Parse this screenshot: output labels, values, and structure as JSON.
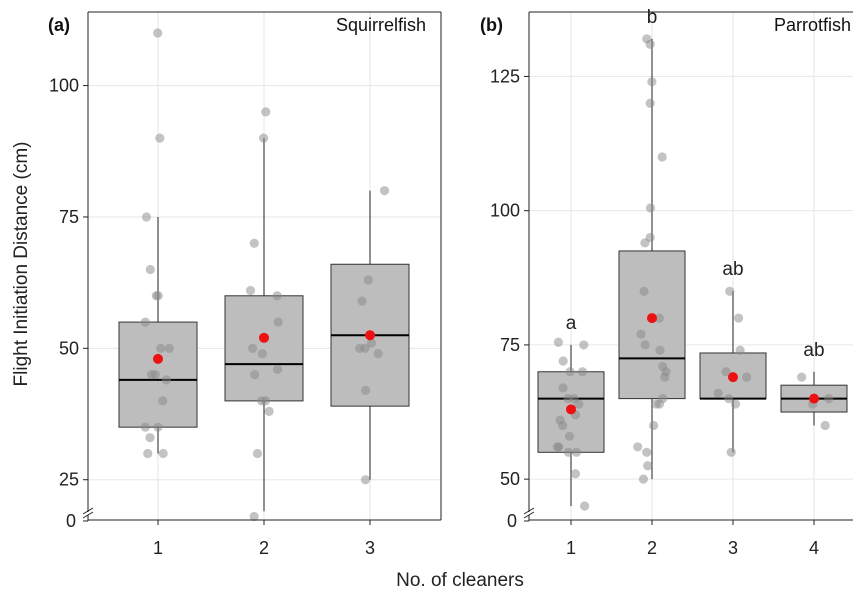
{
  "figure": {
    "ylabel": "Flight Initiation Distance (cm)",
    "xlabel": "No. of cleaners"
  },
  "colors": {
    "box_fill": "#bdbdbd",
    "box_stroke": "#333333",
    "median": "#000000",
    "point": "#888888",
    "mean": "#ee1111",
    "grid": "#e6e6e6",
    "axis": "#222222"
  },
  "chart_data": [
    {
      "type": "box",
      "panel_label": "(a)",
      "title": "Squirrelfish",
      "categories": [
        "1",
        "2",
        "3"
      ],
      "y_ticks": [
        25,
        50,
        75,
        100
      ],
      "y_axis_zero_label": "0",
      "y_axis_break": true,
      "ylim": [
        20,
        114
      ],
      "grid": true,
      "boxes": [
        {
          "category": "1",
          "whisker_low": 30,
          "q1": 35,
          "median": 44,
          "q3": 55,
          "whisker_high": 75,
          "mean": 48,
          "sig": ""
        },
        {
          "category": "2",
          "whisker_low": 19,
          "q1": 40,
          "median": 47,
          "q3": 60,
          "whisker_high": 90,
          "mean": 52,
          "sig": ""
        },
        {
          "category": "3",
          "whisker_low": 25,
          "q1": 39,
          "median": 52.5,
          "q3": 66,
          "whisker_high": 80,
          "mean": 52.5,
          "sig": ""
        }
      ],
      "points": [
        {
          "category": "1",
          "values": [
            110,
            90,
            75,
            65,
            60,
            60,
            55,
            50,
            50,
            45,
            45,
            44,
            40,
            35,
            35,
            33,
            30,
            30
          ]
        },
        {
          "category": "2",
          "values": [
            95,
            90,
            70,
            61,
            60,
            55,
            50,
            49,
            46,
            45,
            40,
            40,
            38,
            30,
            18
          ]
        },
        {
          "category": "3",
          "values": [
            80,
            63,
            59,
            51,
            50,
            50,
            49,
            42,
            25
          ]
        }
      ]
    },
    {
      "type": "box",
      "panel_label": "(b)",
      "title": "Parrotfish",
      "categories": [
        "1",
        "2",
        "3",
        "4"
      ],
      "y_ticks": [
        50,
        75,
        100,
        125
      ],
      "y_axis_zero_label": "0",
      "y_axis_break": true,
      "ylim": [
        45,
        137
      ],
      "grid": true,
      "boxes": [
        {
          "category": "1",
          "whisker_low": 45,
          "q1": 55,
          "median": 65,
          "q3": 70,
          "whisker_high": 75,
          "mean": 63,
          "sig": "a"
        },
        {
          "category": "2",
          "whisker_low": 50,
          "q1": 65,
          "median": 72.5,
          "q3": 92.5,
          "whisker_high": 132,
          "mean": 80,
          "sig": "b"
        },
        {
          "category": "3",
          "whisker_low": 55,
          "q1": 65,
          "median": 65,
          "q3": 73.5,
          "whisker_high": 85,
          "mean": 69,
          "sig": "ab"
        },
        {
          "category": "4",
          "whisker_low": 60,
          "q1": 62.5,
          "median": 65,
          "q3": 67.5,
          "whisker_high": 70,
          "mean": 65,
          "sig": "ab"
        }
      ],
      "points": [
        {
          "category": "1",
          "values": [
            75.5,
            75,
            72,
            70,
            70,
            67,
            65,
            65,
            64,
            62,
            61,
            60,
            58,
            56,
            56,
            55,
            55,
            51,
            45
          ]
        },
        {
          "category": "2",
          "values": [
            132,
            131,
            124,
            120,
            110,
            100.5,
            95,
            94,
            85,
            80,
            77,
            75,
            74,
            71,
            70,
            69,
            65,
            64,
            64,
            60,
            56,
            55,
            52.5,
            50
          ]
        },
        {
          "category": "3",
          "values": [
            85,
            80,
            74,
            70,
            69,
            66,
            65,
            64,
            55
          ]
        },
        {
          "category": "4",
          "values": [
            69,
            65,
            64,
            60
          ]
        }
      ]
    }
  ]
}
